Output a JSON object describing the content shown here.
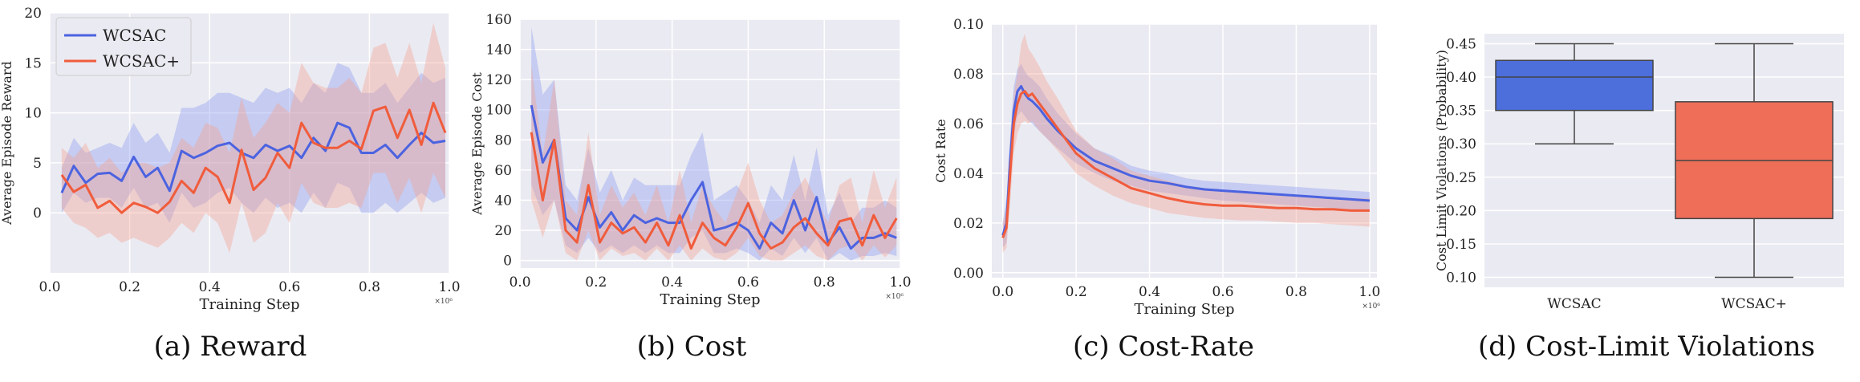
{
  "colors": {
    "blue": "#4c63e0",
    "red": "#f05c3c",
    "blue_band": "#8a98ee",
    "red_band": "#f4a08e",
    "panel_bg": "#eaeaf2",
    "box_blue": "#4c6fdc",
    "box_red": "#ee6e58"
  },
  "chart_data": [
    {
      "type": "line",
      "caption": "(a) Reward",
      "xlabel": "Training Step",
      "ylabel": "Average Episode Reward",
      "x_scale_note": "×10⁶",
      "xlim": [
        0.0,
        1.0
      ],
      "ylim": [
        -6,
        20
      ],
      "xticks": [
        "0.0",
        "0.2",
        "0.4",
        "0.6",
        "0.8",
        "1.0"
      ],
      "yticks": [
        "0",
        "5",
        "10",
        "15",
        "20"
      ],
      "legend": {
        "position": "top-left",
        "entries": [
          "WCSAC",
          "WCSAC+"
        ]
      },
      "grid": true,
      "x": [
        0.03,
        0.06,
        0.09,
        0.12,
        0.15,
        0.18,
        0.21,
        0.24,
        0.27,
        0.3,
        0.33,
        0.36,
        0.39,
        0.42,
        0.45,
        0.48,
        0.51,
        0.54,
        0.57,
        0.6,
        0.63,
        0.66,
        0.69,
        0.72,
        0.75,
        0.78,
        0.81,
        0.84,
        0.87,
        0.9,
        0.93,
        0.96,
        0.99
      ],
      "series": [
        {
          "name": "WCSAC",
          "values": [
            2.0,
            4.7,
            3.0,
            3.9,
            4.0,
            3.2,
            5.6,
            3.6,
            4.5,
            2.2,
            6.2,
            5.5,
            6.0,
            6.7,
            7.0,
            6.0,
            5.5,
            6.8,
            6.2,
            6.7,
            5.5,
            7.5,
            6.2,
            9.0,
            8.5,
            6.0,
            6.0,
            6.8,
            5.5,
            6.8,
            8.0,
            7.0,
            7.2
          ],
          "band_low": [
            0.0,
            2.0,
            1.0,
            1.5,
            1.5,
            0.5,
            2.5,
            0.5,
            1.0,
            -1.0,
            2.0,
            0.5,
            1.0,
            2.0,
            2.5,
            1.0,
            0.0,
            1.5,
            0.5,
            1.0,
            0.0,
            2.0,
            0.5,
            3.0,
            2.5,
            0.0,
            0.0,
            1.0,
            0.0,
            1.0,
            2.0,
            1.0,
            1.5
          ],
          "band_high": [
            4.5,
            7.5,
            6.0,
            6.5,
            7.0,
            6.5,
            9.0,
            7.0,
            8.0,
            6.0,
            10.5,
            10.5,
            11.0,
            12.0,
            12.0,
            11.5,
            11.0,
            12.5,
            12.0,
            12.5,
            11.0,
            13.0,
            12.0,
            15.0,
            14.5,
            12.0,
            12.0,
            13.0,
            11.0,
            12.5,
            14.0,
            13.0,
            13.5
          ]
        },
        {
          "name": "WCSAC+",
          "values": [
            3.8,
            2.1,
            2.8,
            0.5,
            1.2,
            0.0,
            1.0,
            0.6,
            0.0,
            1.1,
            3.2,
            2.0,
            4.5,
            3.6,
            1.0,
            6.3,
            2.3,
            3.5,
            6.0,
            4.5,
            9.0,
            7.0,
            6.5,
            6.5,
            7.2,
            6.4,
            10.2,
            10.6,
            7.5,
            10.3,
            6.8,
            11.0,
            8.0
          ],
          "band_low": [
            0.5,
            -1.0,
            -1.5,
            -2.5,
            -2.0,
            -3.0,
            -2.5,
            -3.0,
            -3.5,
            -2.5,
            -1.0,
            -2.0,
            0.0,
            -1.0,
            -4.0,
            1.0,
            -3.0,
            -2.0,
            1.0,
            -1.0,
            3.0,
            1.0,
            0.5,
            0.5,
            1.0,
            0.5,
            4.0,
            4.0,
            1.0,
            3.5,
            0.0,
            4.0,
            1.5
          ],
          "band_high": [
            6.5,
            5.5,
            7.0,
            4.5,
            5.5,
            4.0,
            5.0,
            5.0,
            4.5,
            5.0,
            7.5,
            6.5,
            9.0,
            8.5,
            6.0,
            11.5,
            7.5,
            9.0,
            11.0,
            10.0,
            15.0,
            13.0,
            12.5,
            12.5,
            13.5,
            12.0,
            16.5,
            17.0,
            13.5,
            17.0,
            13.0,
            19.0,
            14.5
          ]
        }
      ]
    },
    {
      "type": "line",
      "caption": "(b) Cost",
      "xlabel": "Training Step",
      "ylabel": "Average Episode Cost",
      "x_scale_note": "×10⁶",
      "xlim": [
        0.0,
        1.0
      ],
      "ylim": [
        -5,
        160
      ],
      "xticks": [
        "0.0",
        "0.2",
        "0.4",
        "0.6",
        "0.8",
        "1.0"
      ],
      "yticks": [
        "0",
        "20",
        "40",
        "60",
        "80",
        "100",
        "120",
        "140",
        "160"
      ],
      "grid": true,
      "x": [
        0.03,
        0.06,
        0.09,
        0.12,
        0.15,
        0.18,
        0.21,
        0.24,
        0.27,
        0.3,
        0.33,
        0.36,
        0.39,
        0.42,
        0.45,
        0.48,
        0.51,
        0.54,
        0.57,
        0.6,
        0.63,
        0.66,
        0.69,
        0.72,
        0.75,
        0.78,
        0.81,
        0.84,
        0.87,
        0.9,
        0.93,
        0.96,
        0.99
      ],
      "series": [
        {
          "name": "WCSAC",
          "values": [
            103,
            65,
            80,
            28,
            20,
            42,
            22,
            32,
            20,
            30,
            25,
            28,
            25,
            25,
            40,
            52,
            20,
            22,
            25,
            20,
            8,
            25,
            18,
            40,
            20,
            42,
            12,
            22,
            8,
            15,
            15,
            18,
            15
          ],
          "band_low": [
            50,
            30,
            40,
            10,
            5,
            15,
            5,
            10,
            5,
            10,
            5,
            10,
            5,
            5,
            15,
            20,
            5,
            5,
            8,
            5,
            0,
            8,
            3,
            15,
            5,
            15,
            0,
            5,
            0,
            3,
            3,
            5,
            3
          ],
          "band_high": [
            155,
            110,
            120,
            50,
            40,
            75,
            45,
            60,
            40,
            55,
            50,
            50,
            50,
            50,
            70,
            85,
            40,
            45,
            50,
            40,
            25,
            50,
            40,
            70,
            40,
            75,
            30,
            45,
            25,
            35,
            35,
            40,
            35
          ]
        },
        {
          "name": "WCSAC+",
          "values": [
            85,
            40,
            80,
            20,
            12,
            50,
            12,
            25,
            18,
            22,
            12,
            25,
            10,
            30,
            8,
            25,
            15,
            10,
            22,
            38,
            18,
            8,
            12,
            22,
            28,
            18,
            10,
            26,
            28,
            10,
            30,
            15,
            28
          ],
          "band_low": [
            40,
            15,
            40,
            5,
            0,
            20,
            0,
            8,
            3,
            5,
            0,
            8,
            0,
            10,
            0,
            8,
            2,
            0,
            5,
            15,
            3,
            0,
            0,
            5,
            10,
            3,
            0,
            8,
            10,
            0,
            10,
            2,
            10
          ],
          "band_high": [
            130,
            70,
            120,
            40,
            30,
            85,
            30,
            50,
            35,
            45,
            30,
            50,
            25,
            60,
            25,
            50,
            35,
            25,
            45,
            65,
            40,
            25,
            30,
            45,
            55,
            40,
            25,
            50,
            55,
            25,
            60,
            35,
            55
          ]
        }
      ]
    },
    {
      "type": "line",
      "caption": "(c) Cost-Rate",
      "xlabel": "Training Step",
      "ylabel": "Cost Rate",
      "x_scale_note": "×10⁶",
      "xlim": [
        -0.03,
        1.02
      ],
      "ylim": [
        -0.002,
        0.1
      ],
      "xticks": [
        "0.0",
        "0.2",
        "0.4",
        "0.6",
        "0.8",
        "1.0"
      ],
      "yticks": [
        "0.00",
        "0.02",
        "0.04",
        "0.06",
        "0.08",
        "0.10"
      ],
      "grid": true,
      "x": [
        0.0,
        0.01,
        0.02,
        0.03,
        0.04,
        0.05,
        0.06,
        0.07,
        0.08,
        0.1,
        0.12,
        0.15,
        0.2,
        0.25,
        0.3,
        0.35,
        0.4,
        0.45,
        0.5,
        0.55,
        0.6,
        0.65,
        0.7,
        0.75,
        0.8,
        0.85,
        0.9,
        0.95,
        1.0
      ],
      "series": [
        {
          "name": "WCSAC",
          "values": [
            0.015,
            0.02,
            0.045,
            0.065,
            0.073,
            0.075,
            0.072,
            0.07,
            0.069,
            0.066,
            0.062,
            0.057,
            0.05,
            0.045,
            0.042,
            0.039,
            0.037,
            0.036,
            0.0345,
            0.0335,
            0.033,
            0.0325,
            0.032,
            0.0315,
            0.031,
            0.0305,
            0.03,
            0.0295,
            0.029
          ],
          "band_low": [
            0.01,
            0.012,
            0.035,
            0.055,
            0.063,
            0.065,
            0.063,
            0.061,
            0.06,
            0.057,
            0.054,
            0.05,
            0.044,
            0.04,
            0.037,
            0.035,
            0.033,
            0.032,
            0.031,
            0.03,
            0.029,
            0.0285,
            0.028,
            0.0275,
            0.027,
            0.0265,
            0.026,
            0.0255,
            0.025
          ],
          "band_high": [
            0.02,
            0.03,
            0.055,
            0.075,
            0.082,
            0.084,
            0.081,
            0.079,
            0.078,
            0.075,
            0.07,
            0.064,
            0.056,
            0.05,
            0.047,
            0.043,
            0.041,
            0.04,
            0.038,
            0.037,
            0.0365,
            0.036,
            0.0355,
            0.035,
            0.0345,
            0.034,
            0.0335,
            0.033,
            0.0325
          ]
        },
        {
          "name": "WCSAC+",
          "values": [
            0.014,
            0.018,
            0.04,
            0.06,
            0.068,
            0.072,
            0.073,
            0.071,
            0.072,
            0.068,
            0.064,
            0.058,
            0.048,
            0.042,
            0.038,
            0.034,
            0.032,
            0.03,
            0.0285,
            0.0275,
            0.027,
            0.027,
            0.0265,
            0.026,
            0.026,
            0.0255,
            0.0255,
            0.025,
            0.025
          ],
          "band_low": [
            0.008,
            0.01,
            0.028,
            0.048,
            0.056,
            0.06,
            0.061,
            0.06,
            0.061,
            0.057,
            0.054,
            0.049,
            0.04,
            0.035,
            0.031,
            0.028,
            0.026,
            0.024,
            0.023,
            0.022,
            0.0215,
            0.021,
            0.021,
            0.0205,
            0.02,
            0.02,
            0.0195,
            0.019,
            0.0185
          ],
          "band_high": [
            0.02,
            0.026,
            0.052,
            0.072,
            0.08,
            0.092,
            0.096,
            0.09,
            0.088,
            0.083,
            0.077,
            0.07,
            0.057,
            0.05,
            0.046,
            0.041,
            0.039,
            0.037,
            0.035,
            0.034,
            0.033,
            0.0325,
            0.032,
            0.0315,
            0.031,
            0.031,
            0.0305,
            0.03,
            0.03
          ]
        }
      ]
    },
    {
      "type": "box",
      "caption": "(d) Cost-Limit Violations",
      "xlabel": "",
      "ylabel": "Cost Limit Violations (Probability)",
      "ylim": [
        0.085,
        0.465
      ],
      "yticks": [
        "0.10",
        "0.15",
        "0.20",
        "0.25",
        "0.30",
        "0.35",
        "0.40",
        "0.45"
      ],
      "categories": [
        "WCSAC",
        "WCSAC+"
      ],
      "grid": true,
      "boxes": [
        {
          "name": "WCSAC",
          "min": 0.3,
          "q1": 0.35,
          "median": 0.4,
          "q3": 0.425,
          "max": 0.45
        },
        {
          "name": "WCSAC+",
          "min": 0.1,
          "q1": 0.188,
          "median": 0.275,
          "q3": 0.363,
          "max": 0.45
        }
      ]
    }
  ]
}
